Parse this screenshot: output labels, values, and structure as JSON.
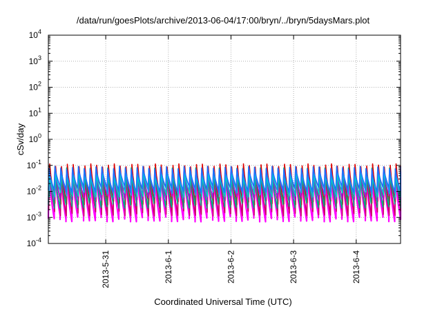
{
  "chart_data": {
    "type": "line",
    "title": "/data/run/goesPlots/archive/2013-06-04/17:00/bryn/../bryn/5daysMars.plot",
    "xlabel": "Coordinated Universal Time (UTC)",
    "ylabel": "cSv/day",
    "yscale": "log",
    "ylim": [
      0.0001,
      10000
    ],
    "xlim": [
      "2013-05-30 02:00",
      "2013-06-04 17:00"
    ],
    "grid": true,
    "x_ticks": [
      {
        "value": "2013-05-31 00:00",
        "label": "2013-5-31"
      },
      {
        "value": "2013-06-01 00:00",
        "label": "2013-6-1"
      },
      {
        "value": "2013-06-02 00:00",
        "label": "2013-6-2"
      },
      {
        "value": "2013-06-03 00:00",
        "label": "2013-6-3"
      },
      {
        "value": "2013-06-04 00:00",
        "label": "2013-6-4"
      }
    ],
    "y_ticks": [
      {
        "value": 0.0001,
        "base": "10",
        "exp": "-4"
      },
      {
        "value": 0.001,
        "base": "10",
        "exp": "-3"
      },
      {
        "value": 0.01,
        "base": "10",
        "exp": "-2"
      },
      {
        "value": 0.1,
        "base": "10",
        "exp": "-1"
      },
      {
        "value": 1,
        "base": "10",
        "exp": "0"
      },
      {
        "value": 10,
        "base": "10",
        "exp": "1"
      },
      {
        "value": 100,
        "base": "10",
        "exp": "2"
      },
      {
        "value": 1000,
        "base": "10",
        "exp": "3"
      },
      {
        "value": 10000,
        "base": "10",
        "exp": "4"
      }
    ],
    "oscillation": {
      "cycles_per_day": 10.6,
      "note_visible_pattern": "sawtooth: sharp rise then decay each cycle"
    },
    "series": [
      {
        "color": "#ff00ff",
        "peak": 0.05,
        "trough": 0.0009
      },
      {
        "color": "#cc0066",
        "peak": 0.06,
        "trough": 0.0015
      },
      {
        "color": "#dd0000",
        "peak": 0.1,
        "trough": 0.004
      },
      {
        "color": "#00aa88",
        "peak": 0.07,
        "trough": 0.003
      },
      {
        "color": "#8a2be2",
        "peak": 0.06,
        "trough": 0.006
      },
      {
        "color": "#00cccc",
        "peak": 0.05,
        "trough": 0.008
      },
      {
        "color": "#1e6fff",
        "peak": 0.08,
        "trough": 0.012
      }
    ]
  }
}
